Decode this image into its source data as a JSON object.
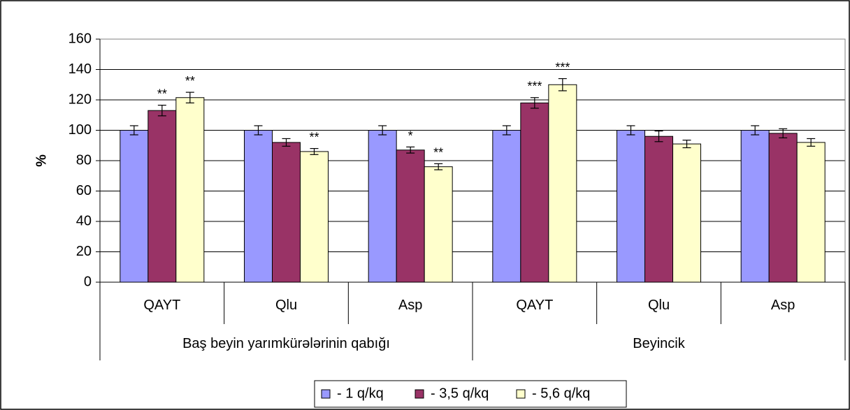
{
  "chart_data": {
    "type": "bar",
    "ylabel": "%",
    "ylim": [
      0,
      160
    ],
    "yticks": [
      0,
      20,
      40,
      60,
      80,
      100,
      120,
      140,
      160
    ],
    "grid": true,
    "legend_position": "bottom",
    "groups": [
      {
        "label": "Baş beyin yarımkürələrinin qabığı",
        "categories": [
          "QAYT",
          "Qlu",
          "Asp"
        ]
      },
      {
        "label": "Beyincik",
        "categories": [
          "QAYT",
          "Qlu",
          "Asp"
        ]
      }
    ],
    "categories": [
      "QAYT",
      "Qlu",
      "Asp",
      "QAYT",
      "Qlu",
      "Asp"
    ],
    "series": [
      {
        "name": "- 1 q/kq",
        "color": "#9999ff",
        "values": [
          100,
          100,
          100,
          100,
          100,
          100
        ],
        "errors": [
          3,
          3,
          3,
          3,
          3,
          3
        ]
      },
      {
        "name": "- 3,5 q/kq",
        "color": "#993366",
        "values": [
          113,
          92,
          87,
          118,
          96,
          98
        ],
        "errors": [
          3.5,
          2.5,
          2,
          3.5,
          3.5,
          3
        ]
      },
      {
        "name": "- 5,6 q/kq",
        "color": "#ffffcc",
        "values": [
          121.5,
          86,
          76,
          130,
          91,
          92
        ],
        "errors": [
          3.5,
          2,
          2,
          4,
          2.5,
          2.5
        ]
      }
    ],
    "annotations": [
      {
        "category_index": 0,
        "series_index": 1,
        "text": "**"
      },
      {
        "category_index": 0,
        "series_index": 2,
        "text": "**"
      },
      {
        "category_index": 1,
        "series_index": 2,
        "text": "**"
      },
      {
        "category_index": 2,
        "series_index": 1,
        "text": "*"
      },
      {
        "category_index": 2,
        "series_index": 2,
        "text": "**"
      },
      {
        "category_index": 3,
        "series_index": 1,
        "text": "***"
      },
      {
        "category_index": 3,
        "series_index": 2,
        "text": "***"
      }
    ]
  }
}
